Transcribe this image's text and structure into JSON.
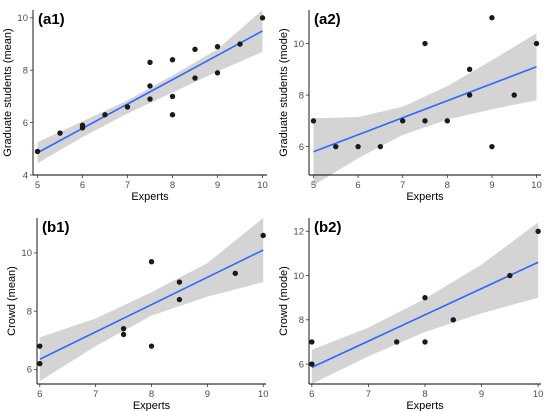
{
  "chart_data": [
    {
      "type": "scatter",
      "panel_label": "(a1)",
      "xlabel": "Experts",
      "ylabel": "Graduate students (mean)",
      "xlim": [
        4.9,
        10.1
      ],
      "ylim": [
        4,
        10.3
      ],
      "xticks": [
        5,
        6,
        7,
        8,
        9,
        10
      ],
      "yticks": [
        4,
        6,
        8,
        10
      ],
      "points": [
        {
          "x": 5,
          "y": 4.9
        },
        {
          "x": 5.5,
          "y": 5.6
        },
        {
          "x": 6,
          "y": 5.8
        },
        {
          "x": 6,
          "y": 5.9
        },
        {
          "x": 6.5,
          "y": 6.3
        },
        {
          "x": 7,
          "y": 6.6
        },
        {
          "x": 7.5,
          "y": 6.9
        },
        {
          "x": 7.5,
          "y": 7.4
        },
        {
          "x": 7.5,
          "y": 8.3
        },
        {
          "x": 8,
          "y": 6.3
        },
        {
          "x": 8,
          "y": 7.0
        },
        {
          "x": 8,
          "y": 8.4
        },
        {
          "x": 8.5,
          "y": 7.7
        },
        {
          "x": 8.5,
          "y": 8.8
        },
        {
          "x": 9,
          "y": 7.9
        },
        {
          "x": 9,
          "y": 8.9
        },
        {
          "x": 9.5,
          "y": 9.0
        },
        {
          "x": 10,
          "y": 10.0
        }
      ],
      "fit": {
        "x": [
          5,
          10
        ],
        "y": [
          4.85,
          9.5
        ]
      },
      "ci": {
        "x": [
          5,
          6,
          7,
          8,
          9,
          10
        ],
        "lower": [
          4.45,
          5.45,
          6.35,
          7.15,
          7.95,
          8.7
        ],
        "upper": [
          5.25,
          6.05,
          6.85,
          7.8,
          8.8,
          10.3
        ]
      },
      "colors": {
        "point": "#1a1a1a",
        "line": "#3366FF",
        "band": "#cccccc"
      }
    },
    {
      "type": "scatter",
      "panel_label": "(a2)",
      "xlabel": "Experts",
      "ylabel": "Graduate students (mode)",
      "xlim": [
        4.9,
        10.1
      ],
      "ylim": [
        4.9,
        11.3
      ],
      "xticks": [
        5,
        6,
        7,
        8,
        9,
        10
      ],
      "yticks": [
        6,
        8,
        10
      ],
      "points": [
        {
          "x": 5,
          "y": 7
        },
        {
          "x": 5.5,
          "y": 6
        },
        {
          "x": 6,
          "y": 6
        },
        {
          "x": 6.5,
          "y": 6
        },
        {
          "x": 7,
          "y": 7
        },
        {
          "x": 7.5,
          "y": 7
        },
        {
          "x": 7.5,
          "y": 10
        },
        {
          "x": 8,
          "y": 7
        },
        {
          "x": 8.5,
          "y": 8
        },
        {
          "x": 8.5,
          "y": 9
        },
        {
          "x": 9,
          "y": 6
        },
        {
          "x": 9,
          "y": 11
        },
        {
          "x": 9.5,
          "y": 8
        },
        {
          "x": 10,
          "y": 10
        }
      ],
      "fit": {
        "x": [
          5,
          10
        ],
        "y": [
          5.8,
          9.1
        ]
      },
      "ci": {
        "x": [
          5,
          6,
          7,
          8,
          9,
          10
        ],
        "lower": [
          4.5,
          5.55,
          6.45,
          7.05,
          7.45,
          7.8
        ],
        "upper": [
          7.1,
          7.15,
          7.55,
          8.35,
          9.35,
          10.4
        ]
      },
      "colors": {
        "point": "#1a1a1a",
        "line": "#3366FF",
        "band": "#cccccc"
      }
    },
    {
      "type": "scatter",
      "panel_label": "(b1)",
      "xlabel": "Experts",
      "ylabel": "Crowd (mean)",
      "xlim": [
        5.95,
        10.05
      ],
      "ylim": [
        5.5,
        11.2
      ],
      "xticks": [
        6,
        7,
        8,
        9,
        10
      ],
      "yticks": [
        6,
        8,
        10
      ],
      "points": [
        {
          "x": 6,
          "y": 6.2
        },
        {
          "x": 6,
          "y": 6.8
        },
        {
          "x": 7.5,
          "y": 7.2
        },
        {
          "x": 7.5,
          "y": 7.4
        },
        {
          "x": 8,
          "y": 6.8
        },
        {
          "x": 8,
          "y": 9.7
        },
        {
          "x": 8.5,
          "y": 8.4
        },
        {
          "x": 8.5,
          "y": 9.0
        },
        {
          "x": 9.5,
          "y": 9.3
        },
        {
          "x": 10,
          "y": 10.6
        }
      ],
      "fit": {
        "x": [
          6,
          10
        ],
        "y": [
          6.35,
          10.1
        ]
      },
      "ci": {
        "x": [
          6,
          7,
          8,
          9,
          10
        ],
        "lower": [
          5.6,
          6.8,
          7.85,
          8.5,
          9.0
        ],
        "upper": [
          7.1,
          7.75,
          8.65,
          9.65,
          11.2
        ]
      },
      "colors": {
        "point": "#1a1a1a",
        "line": "#3366FF",
        "band": "#cccccc"
      }
    },
    {
      "type": "scatter",
      "panel_label": "(b2)",
      "xlabel": "Experts",
      "ylabel": "Crowd (mode)",
      "xlim": [
        5.95,
        10.05
      ],
      "ylim": [
        5.1,
        12.6
      ],
      "xticks": [
        6,
        7,
        8,
        9,
        10
      ],
      "yticks": [
        6,
        8,
        10,
        12
      ],
      "points": [
        {
          "x": 6,
          "y": 6
        },
        {
          "x": 6,
          "y": 7
        },
        {
          "x": 7.5,
          "y": 7
        },
        {
          "x": 8,
          "y": 7
        },
        {
          "x": 8,
          "y": 9
        },
        {
          "x": 8.5,
          "y": 8
        },
        {
          "x": 9.5,
          "y": 10
        },
        {
          "x": 10,
          "y": 12
        }
      ],
      "fit": {
        "x": [
          6,
          10
        ],
        "y": [
          5.85,
          10.6
        ]
      },
      "ci": {
        "x": [
          6,
          7,
          8,
          9,
          10
        ],
        "lower": [
          5.1,
          6.35,
          7.45,
          8.3,
          9.0
        ],
        "upper": [
          6.65,
          7.65,
          8.95,
          10.5,
          12.4
        ]
      },
      "colors": {
        "point": "#1a1a1a",
        "line": "#3366FF",
        "band": "#cccccc"
      }
    }
  ]
}
